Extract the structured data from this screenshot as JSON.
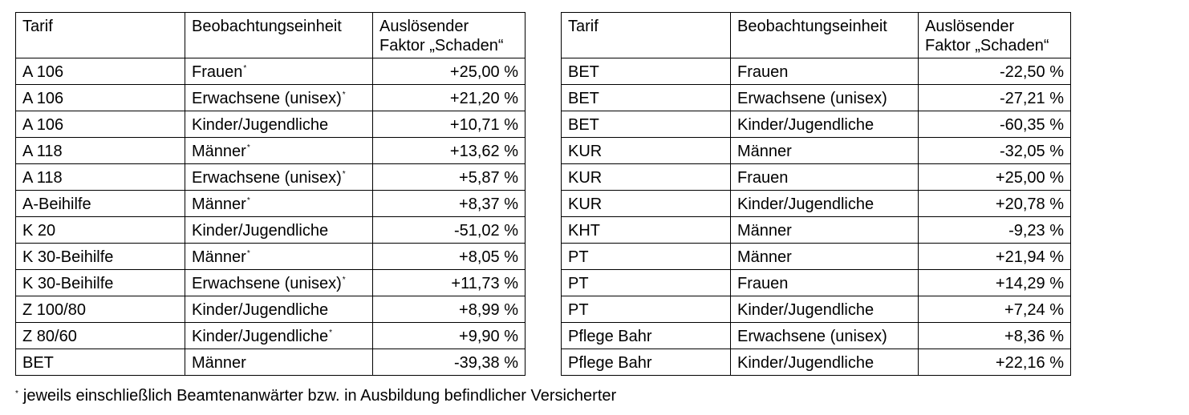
{
  "headers": {
    "tarif": "Tarif",
    "unit": "Beobachtungseinheit",
    "factor_line1": "Auslösender",
    "factor_line2": "Faktor „Schaden“"
  },
  "left_rows": [
    {
      "tarif": "A 106",
      "unit": "Frauen",
      "mark": "*",
      "value": "+25,00 %"
    },
    {
      "tarif": "A 106",
      "unit": "Erwachsene (unisex)",
      "mark": "*",
      "value": "+21,20 %"
    },
    {
      "tarif": "A 106",
      "unit": "Kinder/Jugendliche",
      "mark": "",
      "value": "+10,71 %"
    },
    {
      "tarif": "A 118",
      "unit": "Männer",
      "mark": "*",
      "value": "+13,62 %"
    },
    {
      "tarif": "A 118",
      "unit": "Erwachsene (unisex)",
      "mark": "*",
      "value": "+5,87 %"
    },
    {
      "tarif": "A-Beihilfe",
      "unit": "Männer",
      "mark": "*",
      "value": "+8,37 %"
    },
    {
      "tarif": "K 20",
      "unit": "Kinder/Jugendliche",
      "mark": "",
      "value": "-51,02 %"
    },
    {
      "tarif": "K 30-Beihilfe",
      "unit": "Männer",
      "mark": "*",
      "value": "+8,05 %"
    },
    {
      "tarif": "K 30-Beihilfe",
      "unit": "Erwachsene (unisex)",
      "mark": "*",
      "value": "+11,73 %"
    },
    {
      "tarif": "Z 100/80",
      "unit": "Kinder/Jugendliche",
      "mark": "",
      "value": "+8,99 %"
    },
    {
      "tarif": "Z 80/60",
      "unit": "Kinder/Jugendliche",
      "mark": "*",
      "value": "+9,90 %"
    },
    {
      "tarif": "BET",
      "unit": "Männer",
      "mark": "",
      "value": "-39,38 %"
    }
  ],
  "right_rows": [
    {
      "tarif": "BET",
      "unit": "Frauen",
      "mark": "",
      "value": "-22,50 %"
    },
    {
      "tarif": "BET",
      "unit": "Erwachsene (unisex)",
      "mark": "",
      "value": "-27,21 %"
    },
    {
      "tarif": "BET",
      "unit": "Kinder/Jugendliche",
      "mark": "",
      "value": "-60,35 %"
    },
    {
      "tarif": "KUR",
      "unit": "Männer",
      "mark": "",
      "value": "-32,05 %"
    },
    {
      "tarif": "KUR",
      "unit": "Frauen",
      "mark": "",
      "value": "+25,00 %"
    },
    {
      "tarif": "KUR",
      "unit": "Kinder/Jugendliche",
      "mark": "",
      "value": "+20,78 %"
    },
    {
      "tarif": "KHT",
      "unit": "Männer",
      "mark": "",
      "value": "-9,23 %"
    },
    {
      "tarif": "PT",
      "unit": "Männer",
      "mark": "",
      "value": "+21,94 %"
    },
    {
      "tarif": "PT",
      "unit": "Frauen",
      "mark": "",
      "value": "+14,29 %"
    },
    {
      "tarif": "PT",
      "unit": "Kinder/Jugendliche",
      "mark": "",
      "value": "+7,24 %"
    },
    {
      "tarif": "Pflege Bahr",
      "unit": "Erwachsene (unisex)",
      "mark": "",
      "value": "+8,36 %"
    },
    {
      "tarif": "Pflege Bahr",
      "unit": "Kinder/Jugendliche",
      "mark": "",
      "value": "+22,16 %"
    }
  ],
  "footnote": {
    "mark": "*",
    "text": "jeweils einschließlich Beamtenanwärter bzw. in Ausbildung befindlicher Versicherter"
  }
}
